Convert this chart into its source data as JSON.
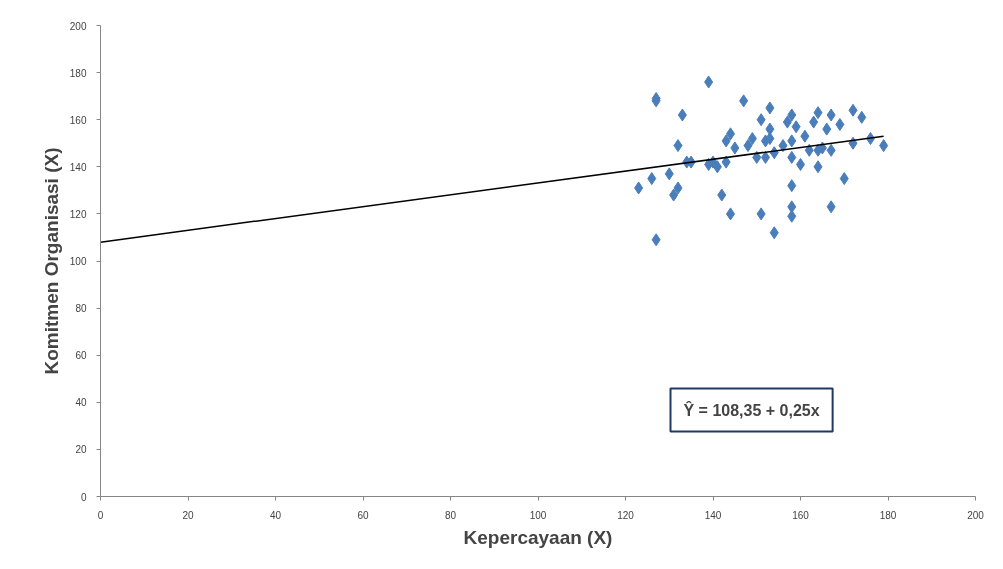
{
  "chart_data": {
    "type": "scatter",
    "xlabel": "Kepercayaan (X)",
    "ylabel": "Komitmen Organisasi (X)",
    "xlim": [
      0,
      200
    ],
    "ylim": [
      0,
      200
    ],
    "xticks": [
      0,
      20,
      40,
      60,
      80,
      100,
      120,
      140,
      160,
      180,
      200
    ],
    "yticks": [
      0,
      20,
      40,
      60,
      80,
      100,
      120,
      140,
      160,
      180,
      200
    ],
    "grid": false,
    "marker": "diamond",
    "annotations": [
      "Ŷ = 108,35 + 0,25x"
    ],
    "series": [
      {
        "color": "#4a7ebb",
        "x": [
          123,
          126,
          127,
          127,
          127,
          130,
          131,
          132,
          132,
          133,
          134,
          135,
          139,
          139,
          140,
          141,
          142,
          143,
          143,
          144,
          144,
          145,
          147,
          148,
          149,
          150,
          151,
          151,
          152,
          152,
          153,
          153,
          153,
          154,
          154,
          156,
          157,
          158,
          158,
          158,
          158,
          158,
          158,
          159,
          160,
          161,
          162,
          163,
          164,
          164,
          164,
          165,
          166,
          167,
          167,
          167,
          169,
          170,
          172,
          172,
          174,
          176,
          179
        ],
        "values": [
          131,
          135,
          168,
          169,
          109,
          137,
          128,
          131,
          149,
          162,
          142,
          142,
          176,
          141,
          142,
          140,
          128,
          142,
          151,
          120,
          154,
          148,
          168,
          149,
          152,
          144,
          120,
          160,
          151,
          144,
          165,
          156,
          152,
          112,
          146,
          149,
          159,
          162,
          132,
          123,
          119,
          151,
          144,
          157,
          141,
          153,
          147,
          159,
          163,
          140,
          147,
          148,
          156,
          123,
          162,
          147,
          158,
          135,
          150,
          164,
          161,
          152,
          149
        ]
      },
      {
        "type": "line",
        "marker": "none",
        "color": "#000000",
        "x": [
          0,
          179
        ],
        "values": [
          108,
          153
        ]
      }
    ]
  }
}
